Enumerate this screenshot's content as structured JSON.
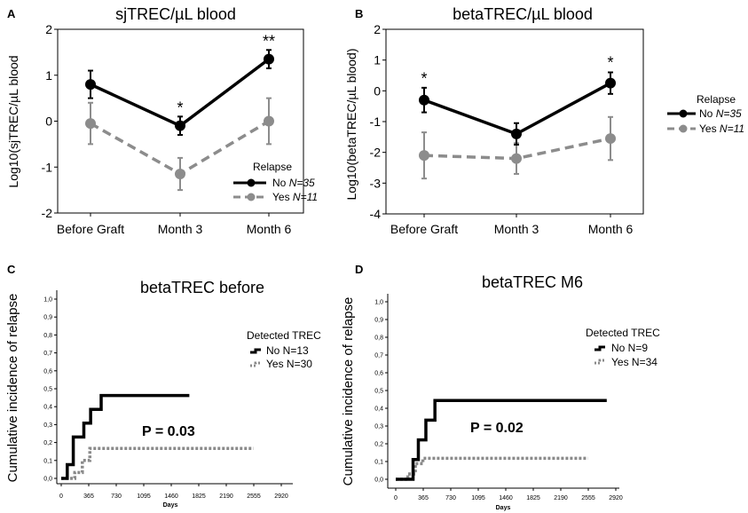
{
  "panels": {
    "A": {
      "letter": "A",
      "title": "sjTREC/µL blood",
      "ylabel": "Log10(sjTREC/µL blood"
    },
    "B": {
      "letter": "B",
      "title": "betaTREC/µL blood",
      "ylabel": "Log10(betaTREC/µL blood)"
    },
    "C": {
      "letter": "C",
      "title": "betaTREC before",
      "ylabel": "Cumulative incidence of relapse",
      "xlabel": "Days",
      "pvalue": "P = 0.03"
    },
    "D": {
      "letter": "D",
      "title": "betaTREC M6",
      "ylabel": "Cumulative incidence of relapse",
      "xlabel": "Days",
      "pvalue": "P = 0.02"
    }
  },
  "legends": {
    "A": {
      "title": "Relapse",
      "items": [
        {
          "label": "No",
          "n": "N=35"
        },
        {
          "label": "Yes",
          "n": "N=11"
        }
      ]
    },
    "B": {
      "title": "Relapse",
      "items": [
        {
          "label": "No",
          "n": "N=35"
        },
        {
          "label": "Yes",
          "n": "N=11"
        }
      ]
    },
    "C": {
      "title": "Detected TREC",
      "items": [
        {
          "label": "No N=13"
        },
        {
          "label": "Yes N=30"
        }
      ]
    },
    "D": {
      "title": "Detected TREC",
      "items": [
        {
          "label": "No N=9"
        },
        {
          "label": "Yes N=34"
        }
      ]
    }
  },
  "colors": {
    "no": "#000000",
    "yes": "#8c8c8c",
    "yes_step": "#8a8a8a",
    "axis": "#000000"
  },
  "chart_data": [
    {
      "id": "A",
      "type": "line",
      "title": "sjTREC/µL blood",
      "ylabel": "Log10(sjTREC/µL blood",
      "xlabel": "",
      "categories": [
        "Before Graft",
        "Month 3",
        "Month 6"
      ],
      "ylim": [
        -2,
        2
      ],
      "yticks": [
        "-2",
        "-1",
        "0",
        "1",
        "2"
      ],
      "series": [
        {
          "name": "No N=35",
          "values": [
            0.8,
            -0.1,
            1.35
          ],
          "err": [
            0.3,
            0.2,
            0.2
          ],
          "style": "solid"
        },
        {
          "name": "Yes N=11",
          "values": [
            -0.05,
            -1.15,
            0.0
          ],
          "err": [
            0.45,
            0.35,
            0.5
          ],
          "style": "dashed"
        }
      ],
      "annotations": [
        {
          "category": "Month 3",
          "value": 0.17,
          "text": "*"
        },
        {
          "category": "Month 6",
          "value": 1.62,
          "text": "**"
        }
      ]
    },
    {
      "id": "B",
      "type": "line",
      "title": "betaTREC/µL blood",
      "ylabel": "Log10(betaTREC/µL blood)",
      "xlabel": "",
      "categories": [
        "Before Graft",
        "Month 3",
        "Month 6"
      ],
      "ylim": [
        -4,
        2
      ],
      "yticks": [
        "-4",
        "-3",
        "-2",
        "-1",
        "0",
        "1",
        "2"
      ],
      "series": [
        {
          "name": "No N=35",
          "values": [
            -0.3,
            -1.4,
            0.25
          ],
          "err": [
            0.4,
            0.35,
            0.35
          ],
          "style": "solid"
        },
        {
          "name": "Yes N=11",
          "values": [
            -2.1,
            -2.2,
            -1.55
          ],
          "err": [
            0.75,
            0.5,
            0.7
          ],
          "style": "dashed"
        }
      ],
      "annotations": [
        {
          "category": "Before Graft",
          "value": 0.22,
          "text": "*"
        },
        {
          "category": "Month 6",
          "value": 0.75,
          "text": "*"
        }
      ]
    },
    {
      "id": "C",
      "type": "line",
      "subtype": "step",
      "title": "betaTREC before",
      "xlabel": "Days",
      "ylabel": "Cumulative incidence of relapse",
      "xticks": [
        0,
        365,
        730,
        1095,
        1460,
        1825,
        2190,
        2555,
        2920
      ],
      "xlim": [
        0,
        2920
      ],
      "yticks": [
        "0,0",
        "0,1",
        "0,2",
        "0,3",
        "0,4",
        "0,5",
        "0,6",
        "0,7",
        "0,8",
        "0,9",
        "1,0"
      ],
      "ylim": [
        0,
        1
      ],
      "series": [
        {
          "name": "No N=13",
          "style": "solid",
          "x": [
            0,
            80,
            160,
            300,
            390,
            530,
            1700
          ],
          "y": [
            0,
            0.077,
            0.231,
            0.308,
            0.385,
            0.462,
            0.462
          ]
        },
        {
          "name": "Yes N=30",
          "style": "dotted",
          "x": [
            0,
            180,
            280,
            380,
            2550
          ],
          "y": [
            0,
            0.033,
            0.1,
            0.167,
            0.167
          ]
        }
      ],
      "p_value": "P = 0.03"
    },
    {
      "id": "D",
      "type": "line",
      "subtype": "step",
      "title": "betaTREC M6",
      "xlabel": "Days",
      "ylabel": "Cumulative incidence of relapse",
      "xticks": [
        0,
        365,
        730,
        1095,
        1460,
        1825,
        2190,
        2555,
        2920
      ],
      "xlim": [
        0,
        2920
      ],
      "yticks": [
        "0,0",
        "0,1",
        "0,2",
        "0,3",
        "0,4",
        "0,5",
        "0,6",
        "0,7",
        "0,8",
        "0,9",
        "1,0"
      ],
      "ylim": [
        0,
        1
      ],
      "series": [
        {
          "name": "No N=9",
          "style": "solid",
          "x": [
            0,
            230,
            300,
            400,
            520,
            2800
          ],
          "y": [
            0,
            0.111,
            0.222,
            0.333,
            0.444,
            0.444
          ]
        },
        {
          "name": "Yes N=34",
          "style": "dotted",
          "x": [
            0,
            160,
            260,
            360,
            2550
          ],
          "y": [
            0,
            0.03,
            0.088,
            0.118,
            0.118
          ]
        }
      ],
      "p_value": "P = 0.02"
    }
  ]
}
